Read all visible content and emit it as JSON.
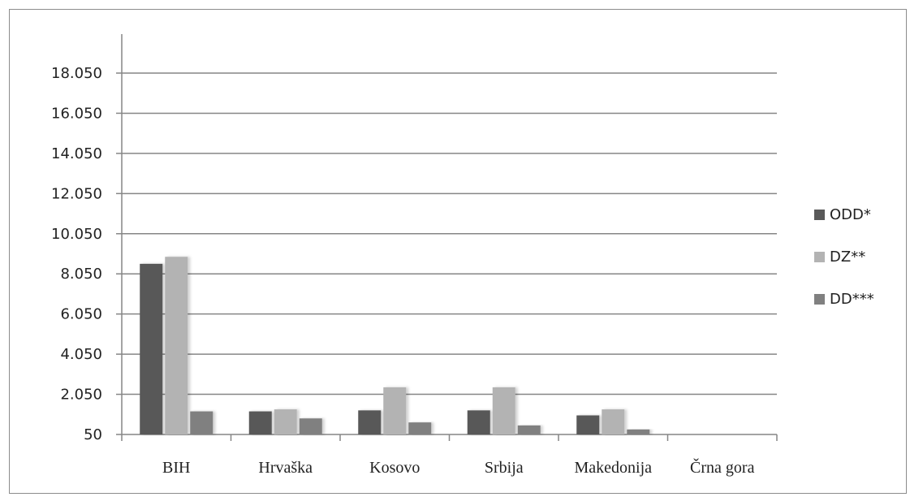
{
  "chart_data": {
    "type": "bar",
    "categories": [
      "BIH",
      "Hrvaška",
      "Kosovo",
      "Srbija",
      "Makedonija",
      "Črna gora"
    ],
    "series": [
      {
        "name": "ODD*",
        "color": "#595959",
        "values": [
          8550,
          1200,
          1250,
          1250,
          1000,
          50
        ]
      },
      {
        "name": "DZ**",
        "color": "#b3b3b3",
        "values": [
          8900,
          1300,
          2400,
          2400,
          1300,
          50
        ]
      },
      {
        "name": "DD***",
        "color": "#808080",
        "values": [
          1200,
          850,
          650,
          500,
          300,
          50
        ]
      }
    ],
    "y_ticks": [
      "50",
      "2.050",
      "4.050",
      "6.050",
      "8.050",
      "10.050",
      "12.050",
      "14.050",
      "16.050",
      "18.050"
    ],
    "y_tick_values": [
      50,
      2050,
      4050,
      6050,
      8050,
      10050,
      12050,
      14050,
      16050,
      18050
    ],
    "ylim": [
      50,
      18050
    ],
    "grid": true,
    "legend_position": "right"
  }
}
